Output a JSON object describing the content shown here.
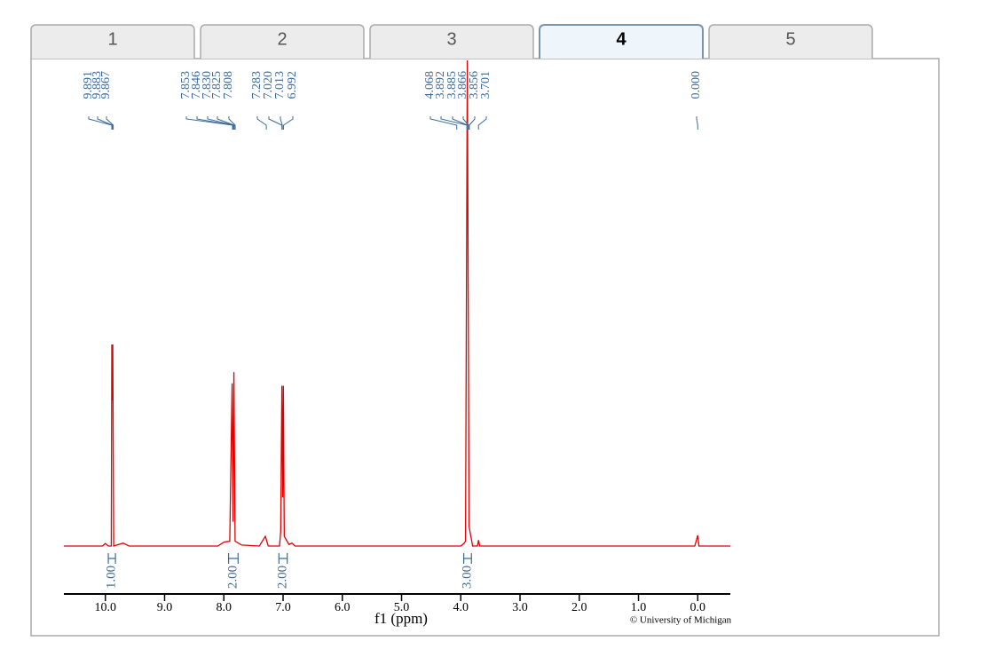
{
  "tabs": [
    "1",
    "2",
    "3",
    "4",
    "5"
  ],
  "active_tab": 3,
  "chart_data": {
    "type": "line",
    "x_label": "f1 (ppm)",
    "credit": "© University of Michigan",
    "xlim": [
      10.7,
      -0.55
    ],
    "ylim": [
      0,
      100
    ],
    "xticks": [
      {
        "value": 10,
        "label": "10.0"
      },
      {
        "value": 9,
        "label": "9.0"
      },
      {
        "value": 8,
        "label": "8.0"
      },
      {
        "value": 7,
        "label": "7.0"
      },
      {
        "value": 6,
        "label": "6.0"
      },
      {
        "value": 5,
        "label": "5.0"
      },
      {
        "value": 4,
        "label": "4.0"
      },
      {
        "value": 3,
        "label": "3.0"
      },
      {
        "value": 2,
        "label": "2.0"
      },
      {
        "value": 1,
        "label": "1.0"
      },
      {
        "value": 0,
        "label": "0.0"
      }
    ],
    "series": [
      {
        "color": "#e00000",
        "x": [
          10.7,
          10.05,
          10.0,
          9.95,
          9.9,
          9.891,
          9.883,
          9.875,
          9.86,
          9.7,
          9.6,
          8.1,
          8.0,
          7.9,
          7.86,
          7.845,
          7.83,
          7.81,
          7.7,
          7.4,
          7.3,
          7.25,
          7.06,
          7.04,
          7.02,
          7.006,
          6.995,
          6.98,
          6.9,
          6.85,
          6.8,
          4.0,
          3.95,
          3.92,
          3.89,
          3.86,
          3.8,
          3.72,
          3.7,
          3.68,
          0.05,
          0.0,
          -0.02,
          -0.55
        ],
        "values": [
          0,
          0,
          0.5,
          0,
          0,
          41.5,
          30,
          41.5,
          0,
          0.6,
          0,
          0,
          0.8,
          1,
          33.5,
          5,
          35.8,
          1,
          0.2,
          0,
          2,
          0,
          0,
          3,
          33,
          10,
          33,
          2,
          0.3,
          0.6,
          0,
          0,
          0.5,
          1,
          100,
          4,
          0,
          0,
          1.2,
          0,
          0,
          2.2,
          0,
          0
        ]
      }
    ],
    "peak_labels": [
      {
        "value": 9.891,
        "label": "9.891"
      },
      {
        "value": 9.883,
        "label": "9.883"
      },
      {
        "value": 9.867,
        "label": "9.867"
      },
      {
        "value": 7.853,
        "label": "7.853"
      },
      {
        "value": 7.846,
        "label": "7.846"
      },
      {
        "value": 7.83,
        "label": "7.830"
      },
      {
        "value": 7.825,
        "label": "7.825"
      },
      {
        "value": 7.808,
        "label": "7.808"
      },
      {
        "value": 7.283,
        "label": "7.283"
      },
      {
        "value": 7.02,
        "label": "7.020"
      },
      {
        "value": 7.013,
        "label": "7.013"
      },
      {
        "value": 6.992,
        "label": "6.992"
      },
      {
        "value": 4.068,
        "label": "4.068"
      },
      {
        "value": 3.892,
        "label": "3.892"
      },
      {
        "value": 3.885,
        "label": "3.885"
      },
      {
        "value": 3.866,
        "label": "3.866"
      },
      {
        "value": 3.856,
        "label": "3.856"
      },
      {
        "value": 3.701,
        "label": "3.701"
      },
      {
        "value": 0.0,
        "label": "0.000"
      }
    ],
    "integrals": [
      {
        "value": 1,
        "label": "1.00",
        "range": [
          9.95,
          9.83
        ]
      },
      {
        "value": 2,
        "label": "2.00",
        "range": [
          7.92,
          7.76
        ]
      },
      {
        "value": 2,
        "label": "2.00",
        "range": [
          7.07,
          6.93
        ]
      },
      {
        "value": 3,
        "label": "3.00",
        "range": [
          3.95,
          3.82
        ]
      }
    ]
  }
}
